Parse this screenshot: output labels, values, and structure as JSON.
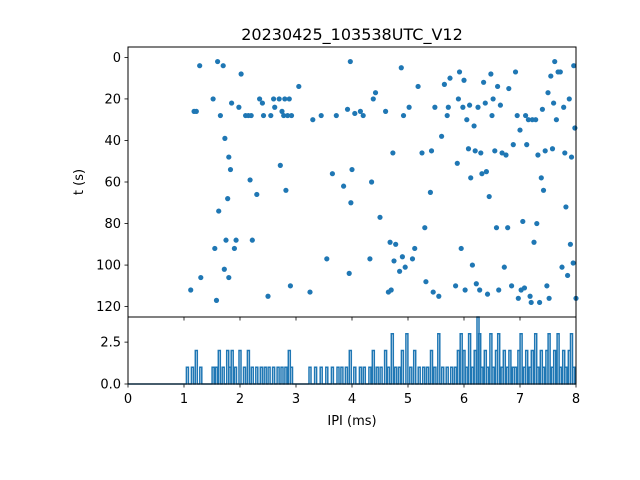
{
  "chart_data": [
    {
      "type": "scatter",
      "title": "20230425_103538UTC_V12",
      "xlabel": "",
      "ylabel": "t (s)",
      "xlim": [
        0,
        8
      ],
      "ylim": [
        125,
        -5
      ],
      "y_inverted": true,
      "xticks": [
        "0",
        "1",
        "2",
        "3",
        "4",
        "5",
        "6",
        "7",
        "8"
      ],
      "yticks": [
        "0",
        "20",
        "40",
        "60",
        "80",
        "100",
        "120"
      ],
      "xtick_labels_visible": false,
      "grid": false,
      "color": "#1f77b4",
      "points": [
        [
          1.12,
          112
        ],
        [
          1.18,
          26
        ],
        [
          1.22,
          26
        ],
        [
          1.28,
          4
        ],
        [
          1.3,
          106
        ],
        [
          1.52,
          20
        ],
        [
          1.55,
          92
        ],
        [
          1.58,
          117
        ],
        [
          1.6,
          2
        ],
        [
          1.62,
          74
        ],
        [
          1.65,
          28
        ],
        [
          1.7,
          4
        ],
        [
          1.72,
          102
        ],
        [
          1.73,
          39
        ],
        [
          1.75,
          88
        ],
        [
          1.78,
          68
        ],
        [
          1.8,
          106
        ],
        [
          1.8,
          48
        ],
        [
          1.83,
          54
        ],
        [
          1.85,
          22
        ],
        [
          1.9,
          92
        ],
        [
          1.93,
          88
        ],
        [
          1.98,
          24
        ],
        [
          2.02,
          8
        ],
        [
          2.1,
          28
        ],
        [
          2.15,
          28
        ],
        [
          2.18,
          59
        ],
        [
          2.2,
          28
        ],
        [
          2.22,
          88
        ],
        [
          2.3,
          66
        ],
        [
          2.35,
          20
        ],
        [
          2.4,
          22
        ],
        [
          2.42,
          28
        ],
        [
          2.5,
          115
        ],
        [
          2.55,
          28
        ],
        [
          2.6,
          20
        ],
        [
          2.62,
          24
        ],
        [
          2.7,
          20
        ],
        [
          2.72,
          52
        ],
        [
          2.75,
          26
        ],
        [
          2.78,
          28
        ],
        [
          2.8,
          20
        ],
        [
          2.82,
          64
        ],
        [
          2.85,
          28
        ],
        [
          2.88,
          20
        ],
        [
          2.9,
          110
        ],
        [
          2.92,
          28
        ],
        [
          3.05,
          14
        ],
        [
          3.25,
          113
        ],
        [
          3.3,
          30
        ],
        [
          3.45,
          28
        ],
        [
          3.55,
          97
        ],
        [
          3.65,
          56
        ],
        [
          3.72,
          28
        ],
        [
          3.85,
          62
        ],
        [
          3.92,
          25
        ],
        [
          3.95,
          104
        ],
        [
          3.97,
          2
        ],
        [
          3.98,
          70
        ],
        [
          4.0,
          54
        ],
        [
          4.05,
          27
        ],
        [
          4.15,
          26
        ],
        [
          4.2,
          28
        ],
        [
          4.32,
          97
        ],
        [
          4.35,
          60
        ],
        [
          4.38,
          20
        ],
        [
          4.42,
          17
        ],
        [
          4.5,
          77
        ],
        [
          4.6,
          26
        ],
        [
          4.65,
          113
        ],
        [
          4.68,
          89
        ],
        [
          4.7,
          112
        ],
        [
          4.73,
          46
        ],
        [
          4.75,
          98
        ],
        [
          4.78,
          90
        ],
        [
          4.85,
          103
        ],
        [
          4.88,
          5
        ],
        [
          4.9,
          96
        ],
        [
          4.92,
          28
        ],
        [
          4.95,
          101
        ],
        [
          5.02,
          24
        ],
        [
          5.08,
          97
        ],
        [
          5.12,
          92
        ],
        [
          5.18,
          14
        ],
        [
          5.25,
          46
        ],
        [
          5.3,
          82
        ],
        [
          5.32,
          108
        ],
        [
          5.4,
          65
        ],
        [
          5.42,
          45
        ],
        [
          5.45,
          113
        ],
        [
          5.48,
          24
        ],
        [
          5.55,
          115
        ],
        [
          5.6,
          38
        ],
        [
          5.65,
          13
        ],
        [
          5.7,
          28
        ],
        [
          5.72,
          24
        ],
        [
          5.75,
          10
        ],
        [
          5.85,
          110
        ],
        [
          5.88,
          51
        ],
        [
          5.9,
          20
        ],
        [
          5.92,
          7
        ],
        [
          5.95,
          92
        ],
        [
          5.98,
          24
        ],
        [
          6.0,
          11
        ],
        [
          6.02,
          112
        ],
        [
          6.05,
          30
        ],
        [
          6.08,
          44
        ],
        [
          6.1,
          23
        ],
        [
          6.12,
          58
        ],
        [
          6.15,
          100
        ],
        [
          6.18,
          33
        ],
        [
          6.2,
          45
        ],
        [
          6.22,
          109
        ],
        [
          6.25,
          24
        ],
        [
          6.28,
          112
        ],
        [
          6.3,
          46
        ],
        [
          6.32,
          56
        ],
        [
          6.35,
          12
        ],
        [
          6.38,
          22
        ],
        [
          6.4,
          55
        ],
        [
          6.42,
          114
        ],
        [
          6.45,
          67
        ],
        [
          6.48,
          8
        ],
        [
          6.5,
          28
        ],
        [
          6.52,
          20
        ],
        [
          6.55,
          45
        ],
        [
          6.58,
          82
        ],
        [
          6.6,
          14
        ],
        [
          6.62,
          112
        ],
        [
          6.65,
          23
        ],
        [
          6.68,
          46
        ],
        [
          6.72,
          101
        ],
        [
          6.75,
          47
        ],
        [
          6.78,
          82
        ],
        [
          6.8,
          15
        ],
        [
          6.85,
          110
        ],
        [
          6.88,
          42
        ],
        [
          6.92,
          7
        ],
        [
          6.95,
          28
        ],
        [
          6.97,
          116
        ],
        [
          7.0,
          35
        ],
        [
          7.02,
          112
        ],
        [
          7.05,
          79
        ],
        [
          7.08,
          111
        ],
        [
          7.1,
          28
        ],
        [
          7.12,
          42
        ],
        [
          7.15,
          30
        ],
        [
          7.18,
          115
        ],
        [
          7.2,
          118
        ],
        [
          7.22,
          30
        ],
        [
          7.25,
          89
        ],
        [
          7.28,
          30
        ],
        [
          7.3,
          80
        ],
        [
          7.32,
          47
        ],
        [
          7.35,
          118
        ],
        [
          7.38,
          58
        ],
        [
          7.4,
          25
        ],
        [
          7.42,
          64
        ],
        [
          7.45,
          45
        ],
        [
          7.48,
          110
        ],
        [
          7.5,
          17
        ],
        [
          7.52,
          116
        ],
        [
          7.55,
          9
        ],
        [
          7.58,
          44
        ],
        [
          7.6,
          22
        ],
        [
          7.62,
          2
        ],
        [
          7.65,
          30
        ],
        [
          7.68,
          7
        ],
        [
          7.72,
          7
        ],
        [
          7.75,
          101
        ],
        [
          7.78,
          24
        ],
        [
          7.8,
          46
        ],
        [
          7.82,
          72
        ],
        [
          7.85,
          105
        ],
        [
          7.88,
          20
        ],
        [
          7.9,
          90
        ],
        [
          7.92,
          48
        ],
        [
          7.95,
          99
        ],
        [
          7.96,
          4
        ],
        [
          7.98,
          34
        ],
        [
          8.0,
          116
        ]
      ]
    },
    {
      "type": "line",
      "xlabel": "IPI (ms)",
      "ylabel": "",
      "xlim": [
        0,
        8
      ],
      "ylim": [
        0,
        4
      ],
      "xticks": [
        "0",
        "1",
        "2",
        "3",
        "4",
        "5",
        "6",
        "7",
        "8"
      ],
      "yticks": [
        "0.0",
        "2.5"
      ],
      "grid": false,
      "color": "#1f77b4",
      "spikes": [
        [
          1.06,
          1
        ],
        [
          1.15,
          1
        ],
        [
          1.22,
          2
        ],
        [
          1.3,
          1
        ],
        [
          1.52,
          1
        ],
        [
          1.58,
          1
        ],
        [
          1.63,
          2
        ],
        [
          1.7,
          1
        ],
        [
          1.78,
          2
        ],
        [
          1.82,
          1
        ],
        [
          1.86,
          2
        ],
        [
          1.92,
          1
        ],
        [
          2.0,
          2
        ],
        [
          2.08,
          1
        ],
        [
          2.15,
          2
        ],
        [
          2.22,
          1
        ],
        [
          2.3,
          1
        ],
        [
          2.38,
          1
        ],
        [
          2.45,
          1
        ],
        [
          2.52,
          1
        ],
        [
          2.6,
          1
        ],
        [
          2.68,
          1
        ],
        [
          2.75,
          1
        ],
        [
          2.82,
          1
        ],
        [
          2.88,
          2
        ],
        [
          2.92,
          1
        ],
        [
          3.25,
          1
        ],
        [
          3.35,
          1
        ],
        [
          3.45,
          1
        ],
        [
          3.55,
          1
        ],
        [
          3.65,
          1
        ],
        [
          3.75,
          1
        ],
        [
          3.82,
          1
        ],
        [
          3.9,
          1
        ],
        [
          3.97,
          2
        ],
        [
          4.05,
          1
        ],
        [
          4.15,
          1
        ],
        [
          4.22,
          1
        ],
        [
          4.32,
          1
        ],
        [
          4.38,
          2
        ],
        [
          4.45,
          1
        ],
        [
          4.52,
          1
        ],
        [
          4.6,
          2
        ],
        [
          4.65,
          1
        ],
        [
          4.72,
          3
        ],
        [
          4.78,
          1
        ],
        [
          4.85,
          1
        ],
        [
          4.9,
          2
        ],
        [
          4.98,
          3
        ],
        [
          5.05,
          1
        ],
        [
          5.12,
          2
        ],
        [
          5.2,
          1
        ],
        [
          5.28,
          1
        ],
        [
          5.35,
          1
        ],
        [
          5.42,
          2
        ],
        [
          5.48,
          1
        ],
        [
          5.55,
          3
        ],
        [
          5.62,
          1
        ],
        [
          5.7,
          1
        ],
        [
          5.78,
          1
        ],
        [
          5.85,
          1
        ],
        [
          5.9,
          2
        ],
        [
          5.95,
          3
        ],
        [
          6.0,
          2
        ],
        [
          6.05,
          1
        ],
        [
          6.1,
          3
        ],
        [
          6.15,
          1
        ],
        [
          6.2,
          2
        ],
        [
          6.25,
          4
        ],
        [
          6.28,
          3
        ],
        [
          6.32,
          1
        ],
        [
          6.38,
          2
        ],
        [
          6.42,
          1
        ],
        [
          6.48,
          3
        ],
        [
          6.52,
          1
        ],
        [
          6.58,
          2
        ],
        [
          6.62,
          3
        ],
        [
          6.68,
          1
        ],
        [
          6.72,
          2
        ],
        [
          6.78,
          1
        ],
        [
          6.82,
          2
        ],
        [
          6.88,
          1
        ],
        [
          6.92,
          1
        ],
        [
          6.98,
          2
        ],
        [
          7.02,
          3
        ],
        [
          7.08,
          1
        ],
        [
          7.12,
          2
        ],
        [
          7.18,
          1
        ],
        [
          7.22,
          2
        ],
        [
          7.28,
          3
        ],
        [
          7.32,
          1
        ],
        [
          7.38,
          2
        ],
        [
          7.42,
          1
        ],
        [
          7.48,
          2
        ],
        [
          7.52,
          3
        ],
        [
          7.58,
          1
        ],
        [
          7.62,
          2
        ],
        [
          7.68,
          3
        ],
        [
          7.72,
          1
        ],
        [
          7.78,
          2
        ],
        [
          7.82,
          1
        ],
        [
          7.88,
          2
        ],
        [
          7.92,
          3
        ],
        [
          7.96,
          1
        ]
      ]
    }
  ]
}
